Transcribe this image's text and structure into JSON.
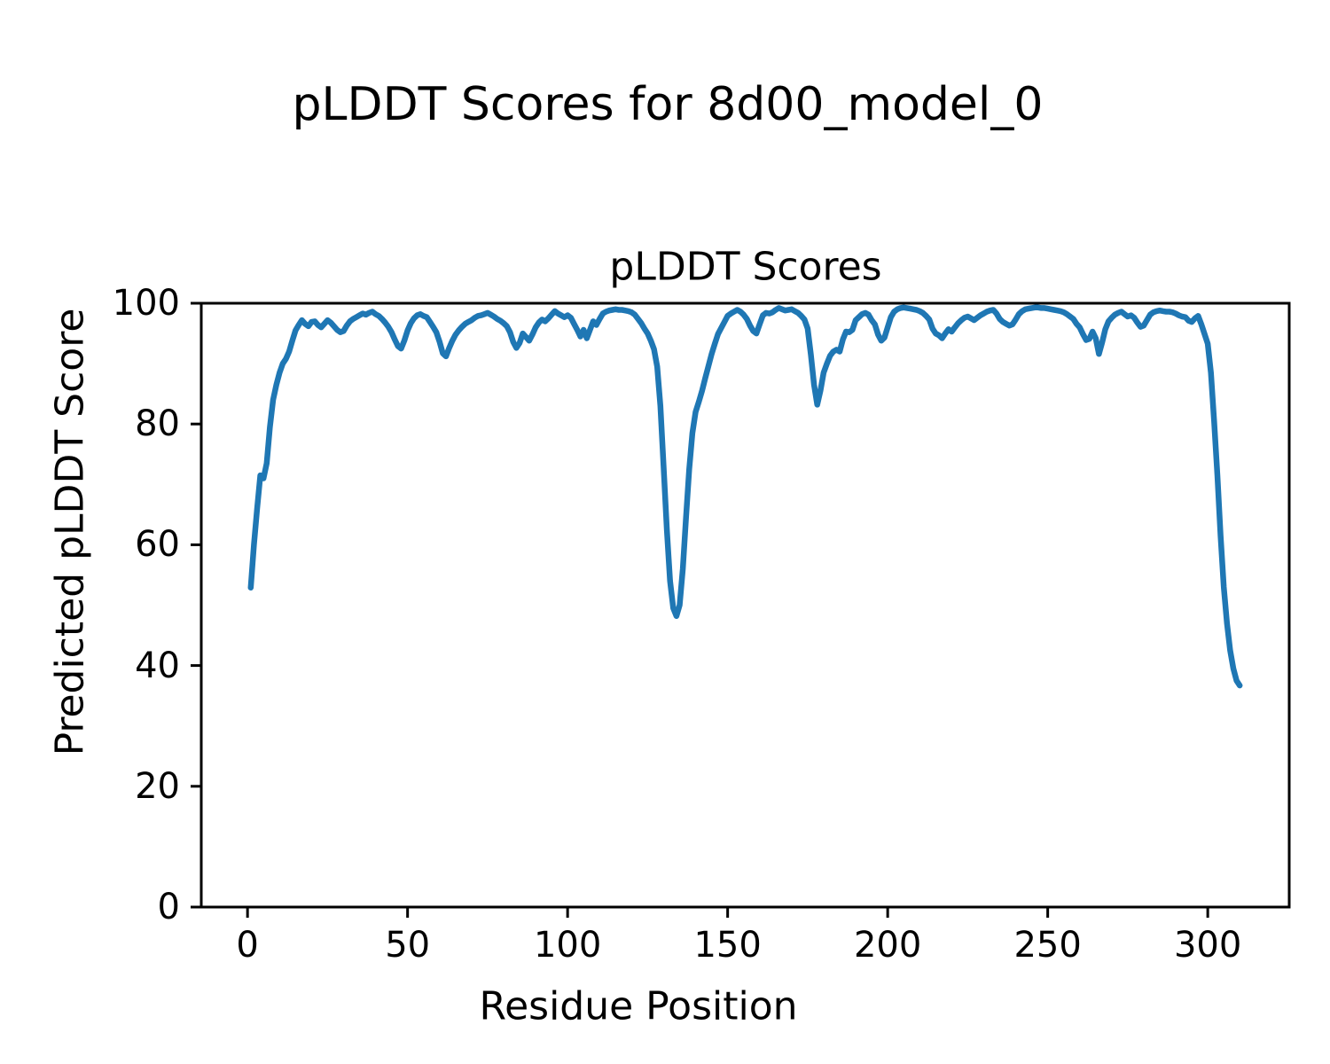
{
  "figure": {
    "suptitle": "pLDDT Scores for 8d00_model_0"
  },
  "chart_data": {
    "type": "line",
    "title": "pLDDT Scores",
    "xlabel": "Residue Position",
    "ylabel": "Predicted pLDDT Score",
    "x_ticks": [
      0,
      50,
      100,
      150,
      200,
      250,
      300
    ],
    "y_ticks": [
      0,
      20,
      40,
      60,
      80,
      100
    ],
    "xlim": [
      -14.45,
      325.45
    ],
    "ylim": [
      0,
      100
    ],
    "grid": false,
    "legend": "none",
    "line_color": "#1f77b4",
    "axis_color": "#000000",
    "series": [
      {
        "name": "pLDDT",
        "x_start": 1,
        "x_step": 1,
        "values": [
          52.9,
          60,
          66,
          71.5,
          71,
          73.5,
          79.5,
          84,
          86.5,
          88.5,
          90,
          90.8,
          92,
          93.8,
          95.5,
          96.4,
          97.2,
          96.6,
          96.2,
          96.9,
          97,
          96.4,
          96,
          96.6,
          97.2,
          96.8,
          96.2,
          95.6,
          95.2,
          95.4,
          96.3,
          97,
          97.4,
          97.7,
          98,
          98.3,
          98.1,
          98.4,
          98.6,
          98.2,
          97.9,
          97.4,
          96.8,
          96.1,
          95.2,
          94,
          92.9,
          92.5,
          93.8,
          95.5,
          96.7,
          97.5,
          98,
          98.2,
          97.9,
          97.7,
          96.9,
          96.1,
          95.2,
          93.6,
          91.7,
          91.2,
          92.6,
          93.8,
          94.8,
          95.5,
          96.1,
          96.6,
          96.9,
          97.2,
          97.6,
          97.9,
          98,
          98.2,
          98.4,
          98.1,
          97.8,
          97.4,
          97.1,
          96.7,
          96.2,
          95.2,
          93.6,
          92.6,
          93.4,
          95,
          94.4,
          93.8,
          94.8,
          96,
          96.8,
          97.3,
          97,
          97.5,
          98.1,
          98.7,
          98.3,
          98,
          97.7,
          98,
          97.6,
          96.6,
          95.6,
          94.5,
          95.6,
          94.2,
          95.6,
          97,
          96.4,
          97.4,
          98.3,
          98.6,
          98.8,
          98.9,
          99,
          98.9,
          98.9,
          98.8,
          98.7,
          98.5,
          98.1,
          97.4,
          96.7,
          95.8,
          95,
          93.8,
          92.4,
          89.5,
          83,
          73,
          62.5,
          54,
          49.5,
          48.2,
          50,
          56,
          64.5,
          72.5,
          78.5,
          82,
          83.7,
          85.5,
          87.6,
          89.6,
          91.6,
          93.3,
          94.9,
          95.9,
          96.9,
          97.9,
          98.3,
          98.6,
          98.9,
          98.6,
          98.1,
          97.4,
          96.3,
          95.4,
          95,
          96.5,
          98,
          98.4,
          98.3,
          98.5,
          98.9,
          99.2,
          99,
          98.8,
          98.9,
          99,
          98.7,
          98.4,
          97.9,
          97.3,
          95.8,
          91.5,
          86.5,
          83.2,
          85.5,
          88.5,
          90,
          91.3,
          92,
          92.3,
          92,
          94,
          95.3,
          95.2,
          95.6,
          97.2,
          97.7,
          98.2,
          98.4,
          98.1,
          97.2,
          96.5,
          94.8,
          93.8,
          94.3,
          96,
          97.7,
          98.6,
          99,
          99.2,
          99.3,
          99.2,
          99.1,
          99,
          98.9,
          98.7,
          98.4,
          97.9,
          97.3,
          95.8,
          95,
          94.7,
          94.2,
          95,
          95.7,
          95.3,
          96,
          96.7,
          97.2,
          97.6,
          97.8,
          97.5,
          97.2,
          97.6,
          98,
          98.3,
          98.6,
          98.8,
          98.9,
          98.3,
          97.4,
          96.9,
          96.6,
          96.3,
          96.5,
          97.3,
          98.2,
          98.7,
          99,
          99.1,
          99.2,
          99.3,
          99.3,
          99.2,
          99.2,
          99.1,
          99,
          98.9,
          98.8,
          98.7,
          98.5,
          98.2,
          97.8,
          97.4,
          96.6,
          96,
          94.9,
          93.9,
          94.1,
          95.3,
          94.2,
          91.6,
          93.5,
          95.7,
          97,
          97.6,
          98.1,
          98.4,
          98.6,
          98.2,
          97.8,
          98,
          97.6,
          96.8,
          96.1,
          96.3,
          97.2,
          98.1,
          98.5,
          98.7,
          98.8,
          98.7,
          98.6,
          98.6,
          98.5,
          98.3,
          98,
          97.8,
          97.7,
          97.1,
          96.9,
          97.5,
          97.9,
          96.5,
          94.9,
          93.3,
          88.5,
          80.5,
          71.5,
          61.5,
          53,
          47,
          42.5,
          39.5,
          37.5,
          36.7
        ]
      }
    ]
  }
}
